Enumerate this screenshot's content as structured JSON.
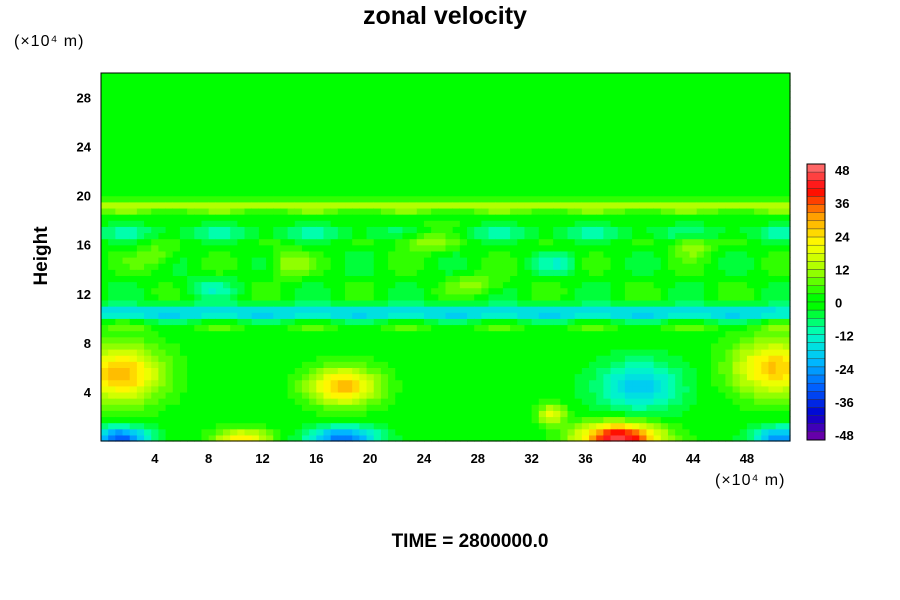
{
  "chart_data": {
    "type": "heatmap",
    "title": "zonal velocity",
    "ylabel": "Height",
    "y_unit_label": "(×10⁴ m)",
    "x_unit_label": "(×10⁴ m)",
    "footer": "TIME = 2800000.0",
    "x_ticks": [
      4,
      8,
      12,
      16,
      20,
      24,
      28,
      32,
      36,
      40,
      44,
      48
    ],
    "y_ticks": [
      4,
      8,
      12,
      16,
      20,
      24,
      28
    ],
    "xlim": [
      0,
      51.2
    ],
    "ylim": [
      0,
      30
    ],
    "colorbar": {
      "ticks": [
        48,
        36,
        24,
        12,
        0,
        -12,
        -24,
        -36,
        -48
      ],
      "range": [
        -50,
        50
      ],
      "colors": {
        "-50": "#8000a0",
        "-40": "#0000d0",
        "-30": "#0060ff",
        "-20": "#00c0ff",
        "-10": "#00ffc0",
        "0": "#00ff00",
        "10": "#a0ff00",
        "20": "#ffff00",
        "30": "#ffa000",
        "40": "#ff0000",
        "50": "#ff8080"
      }
    },
    "features": {
      "bands": [
        {
          "y": 19.2,
          "u": 12,
          "width": 0.5
        },
        {
          "y": 17.0,
          "u": -6,
          "width": 0.5
        },
        {
          "y": 10.5,
          "u": -17,
          "width": 0.6
        },
        {
          "y": 9.4,
          "u": 3,
          "width": 0.3
        }
      ],
      "blobs": [
        {
          "x": 1.5,
          "y": 5.5,
          "u": 28,
          "sx": 3,
          "sy": 2.2
        },
        {
          "x": 18.0,
          "y": 4.5,
          "u": 28,
          "sx": 2.5,
          "sy": 1.5
        },
        {
          "x": 50.0,
          "y": 6.0,
          "u": 26,
          "sx": 3,
          "sy": 2.2
        },
        {
          "x": 38.5,
          "y": 0.3,
          "u": 45,
          "sx": 3,
          "sy": 1.2
        },
        {
          "x": 10.5,
          "y": 0.2,
          "u": 22,
          "sx": 2,
          "sy": 0.8
        },
        {
          "x": 33.5,
          "y": 2.2,
          "u": 18,
          "sx": 1,
          "sy": 0.8
        },
        {
          "x": 1.5,
          "y": 0.3,
          "u": -30,
          "sx": 2,
          "sy": 0.9
        },
        {
          "x": 18.0,
          "y": 0.3,
          "u": -28,
          "sx": 2.5,
          "sy": 0.9
        },
        {
          "x": 50.5,
          "y": 0.3,
          "u": -25,
          "sx": 2,
          "sy": 0.9
        },
        {
          "x": 40.0,
          "y": 4.5,
          "u": -18,
          "sx": 3,
          "sy": 2
        },
        {
          "x": 4.0,
          "y": 15.0,
          "u": 8,
          "sx": 1.5,
          "sy": 1
        },
        {
          "x": 14.0,
          "y": 14.5,
          "u": 10,
          "sx": 1.5,
          "sy": 1
        },
        {
          "x": 24.0,
          "y": 16.5,
          "u": 12,
          "sx": 2,
          "sy": 1
        },
        {
          "x": 34.0,
          "y": 14.5,
          "u": -8,
          "sx": 1.5,
          "sy": 1
        },
        {
          "x": 44.0,
          "y": 16.0,
          "u": 10,
          "sx": 1.5,
          "sy": 1
        },
        {
          "x": 8.0,
          "y": 12.5,
          "u": -8,
          "sx": 2,
          "sy": 0.8
        },
        {
          "x": 28.0,
          "y": 12.8,
          "u": 8,
          "sx": 2,
          "sy": 0.8
        }
      ]
    }
  }
}
